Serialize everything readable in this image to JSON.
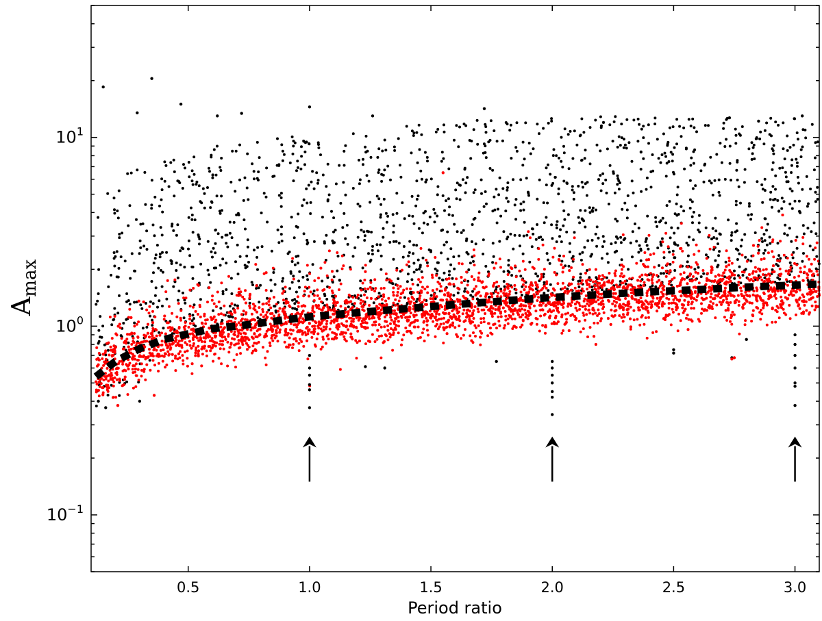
{
  "chart_data": {
    "type": "scatter",
    "title": "",
    "xlabel": "Period ratio",
    "ylabel": "A",
    "ylabel_sub": "max",
    "xlim": [
      0.1,
      3.1
    ],
    "ylim": [
      0.05,
      50
    ],
    "yscale": "log",
    "grid": false,
    "legend": "none",
    "x_ticks": [
      {
        "value": 0.5,
        "label": "0.5"
      },
      {
        "value": 1.0,
        "label": "1.0"
      },
      {
        "value": 1.5,
        "label": "1.5"
      },
      {
        "value": 2.0,
        "label": "2.0"
      },
      {
        "value": 2.5,
        "label": "2.5"
      },
      {
        "value": 3.0,
        "label": "3.0"
      }
    ],
    "y_ticks": [
      {
        "value": 0.1,
        "base": "10",
        "exp": "−1"
      },
      {
        "value": 1,
        "base": "10",
        "exp": "0"
      },
      {
        "value": 10,
        "base": "10",
        "exp": "1"
      }
    ],
    "colors": {
      "black_points": "#000000",
      "red_points": "#ff0000",
      "trend": "#000000"
    },
    "trend_line": {
      "style": "dashed",
      "x": [
        0.12,
        0.2,
        0.3,
        0.4,
        0.5,
        0.6,
        0.7,
        0.8,
        0.9,
        1.0,
        1.2,
        1.4,
        1.6,
        1.8,
        2.0,
        2.2,
        2.4,
        2.6,
        2.8,
        3.0,
        3.1
      ],
      "y": [
        0.54,
        0.65,
        0.76,
        0.85,
        0.91,
        0.97,
        1.0,
        1.04,
        1.08,
        1.12,
        1.18,
        1.24,
        1.3,
        1.36,
        1.42,
        1.47,
        1.52,
        1.56,
        1.61,
        1.65,
        1.67
      ]
    },
    "resonance_arrows": [
      {
        "x": 1.0,
        "y_from": 0.15,
        "y_to": 0.26
      },
      {
        "x": 2.0,
        "y_from": 0.15,
        "y_to": 0.26
      },
      {
        "x": 3.0,
        "y_from": 0.15,
        "y_to": 0.26
      }
    ],
    "resonance_dips": [
      {
        "x": 1.0,
        "y": [
          0.37,
          0.46,
          0.49,
          0.55,
          0.6,
          0.7
        ]
      },
      {
        "x": 2.0,
        "y": [
          0.34,
          0.42,
          0.45,
          0.5,
          0.55,
          0.6,
          0.65
        ]
      },
      {
        "x": 3.0,
        "y": [
          0.38,
          0.48,
          0.5,
          0.6,
          0.7,
          0.8,
          0.9
        ]
      }
    ],
    "black_outliers": [
      {
        "x": 0.15,
        "y": 18.5
      },
      {
        "x": 0.35,
        "y": 20.5
      },
      {
        "x": 0.47,
        "y": 15.0
      },
      {
        "x": 0.29,
        "y": 13.5
      },
      {
        "x": 0.62,
        "y": 13.0
      },
      {
        "x": 0.72,
        "y": 13.4
      },
      {
        "x": 1.0,
        "y": 14.5
      },
      {
        "x": 1.72,
        "y": 14.2
      },
      {
        "x": 2.73,
        "y": 12.7
      },
      {
        "x": 3.03,
        "y": 13.0
      },
      {
        "x": 2.85,
        "y": 12.2
      },
      {
        "x": 1.26,
        "y": 13.0
      },
      {
        "x": 1.31,
        "y": 0.6
      },
      {
        "x": 1.23,
        "y": 0.61
      },
      {
        "x": 1.77,
        "y": 0.65
      },
      {
        "x": 2.74,
        "y": 0.68
      },
      {
        "x": 2.5,
        "y": 0.75
      },
      {
        "x": 2.5,
        "y": 0.72
      },
      {
        "x": 2.8,
        "y": 0.85
      },
      {
        "x": 0.3,
        "y": 0.4
      },
      {
        "x": 0.16,
        "y": 0.37
      },
      {
        "x": 0.13,
        "y": 0.4
      }
    ],
    "red_outliers": [
      {
        "x": 2.74,
        "y": 0.67
      },
      {
        "x": 2.75,
        "y": 0.68
      },
      {
        "x": 1.55,
        "y": 6.5
      },
      {
        "x": 0.36,
        "y": 0.43
      },
      {
        "x": 0.21,
        "y": 0.38
      }
    ],
    "point_cloud": {
      "black": {
        "count": 1700,
        "x_range": [
          0.12,
          3.1
        ],
        "y_range_note": "above trend up to ~12"
      },
      "red": {
        "count": 3600,
        "x_range": [
          0.12,
          3.1
        ],
        "y_range_note": "around and below trend, spread ~0.75x-1.3x"
      }
    }
  }
}
